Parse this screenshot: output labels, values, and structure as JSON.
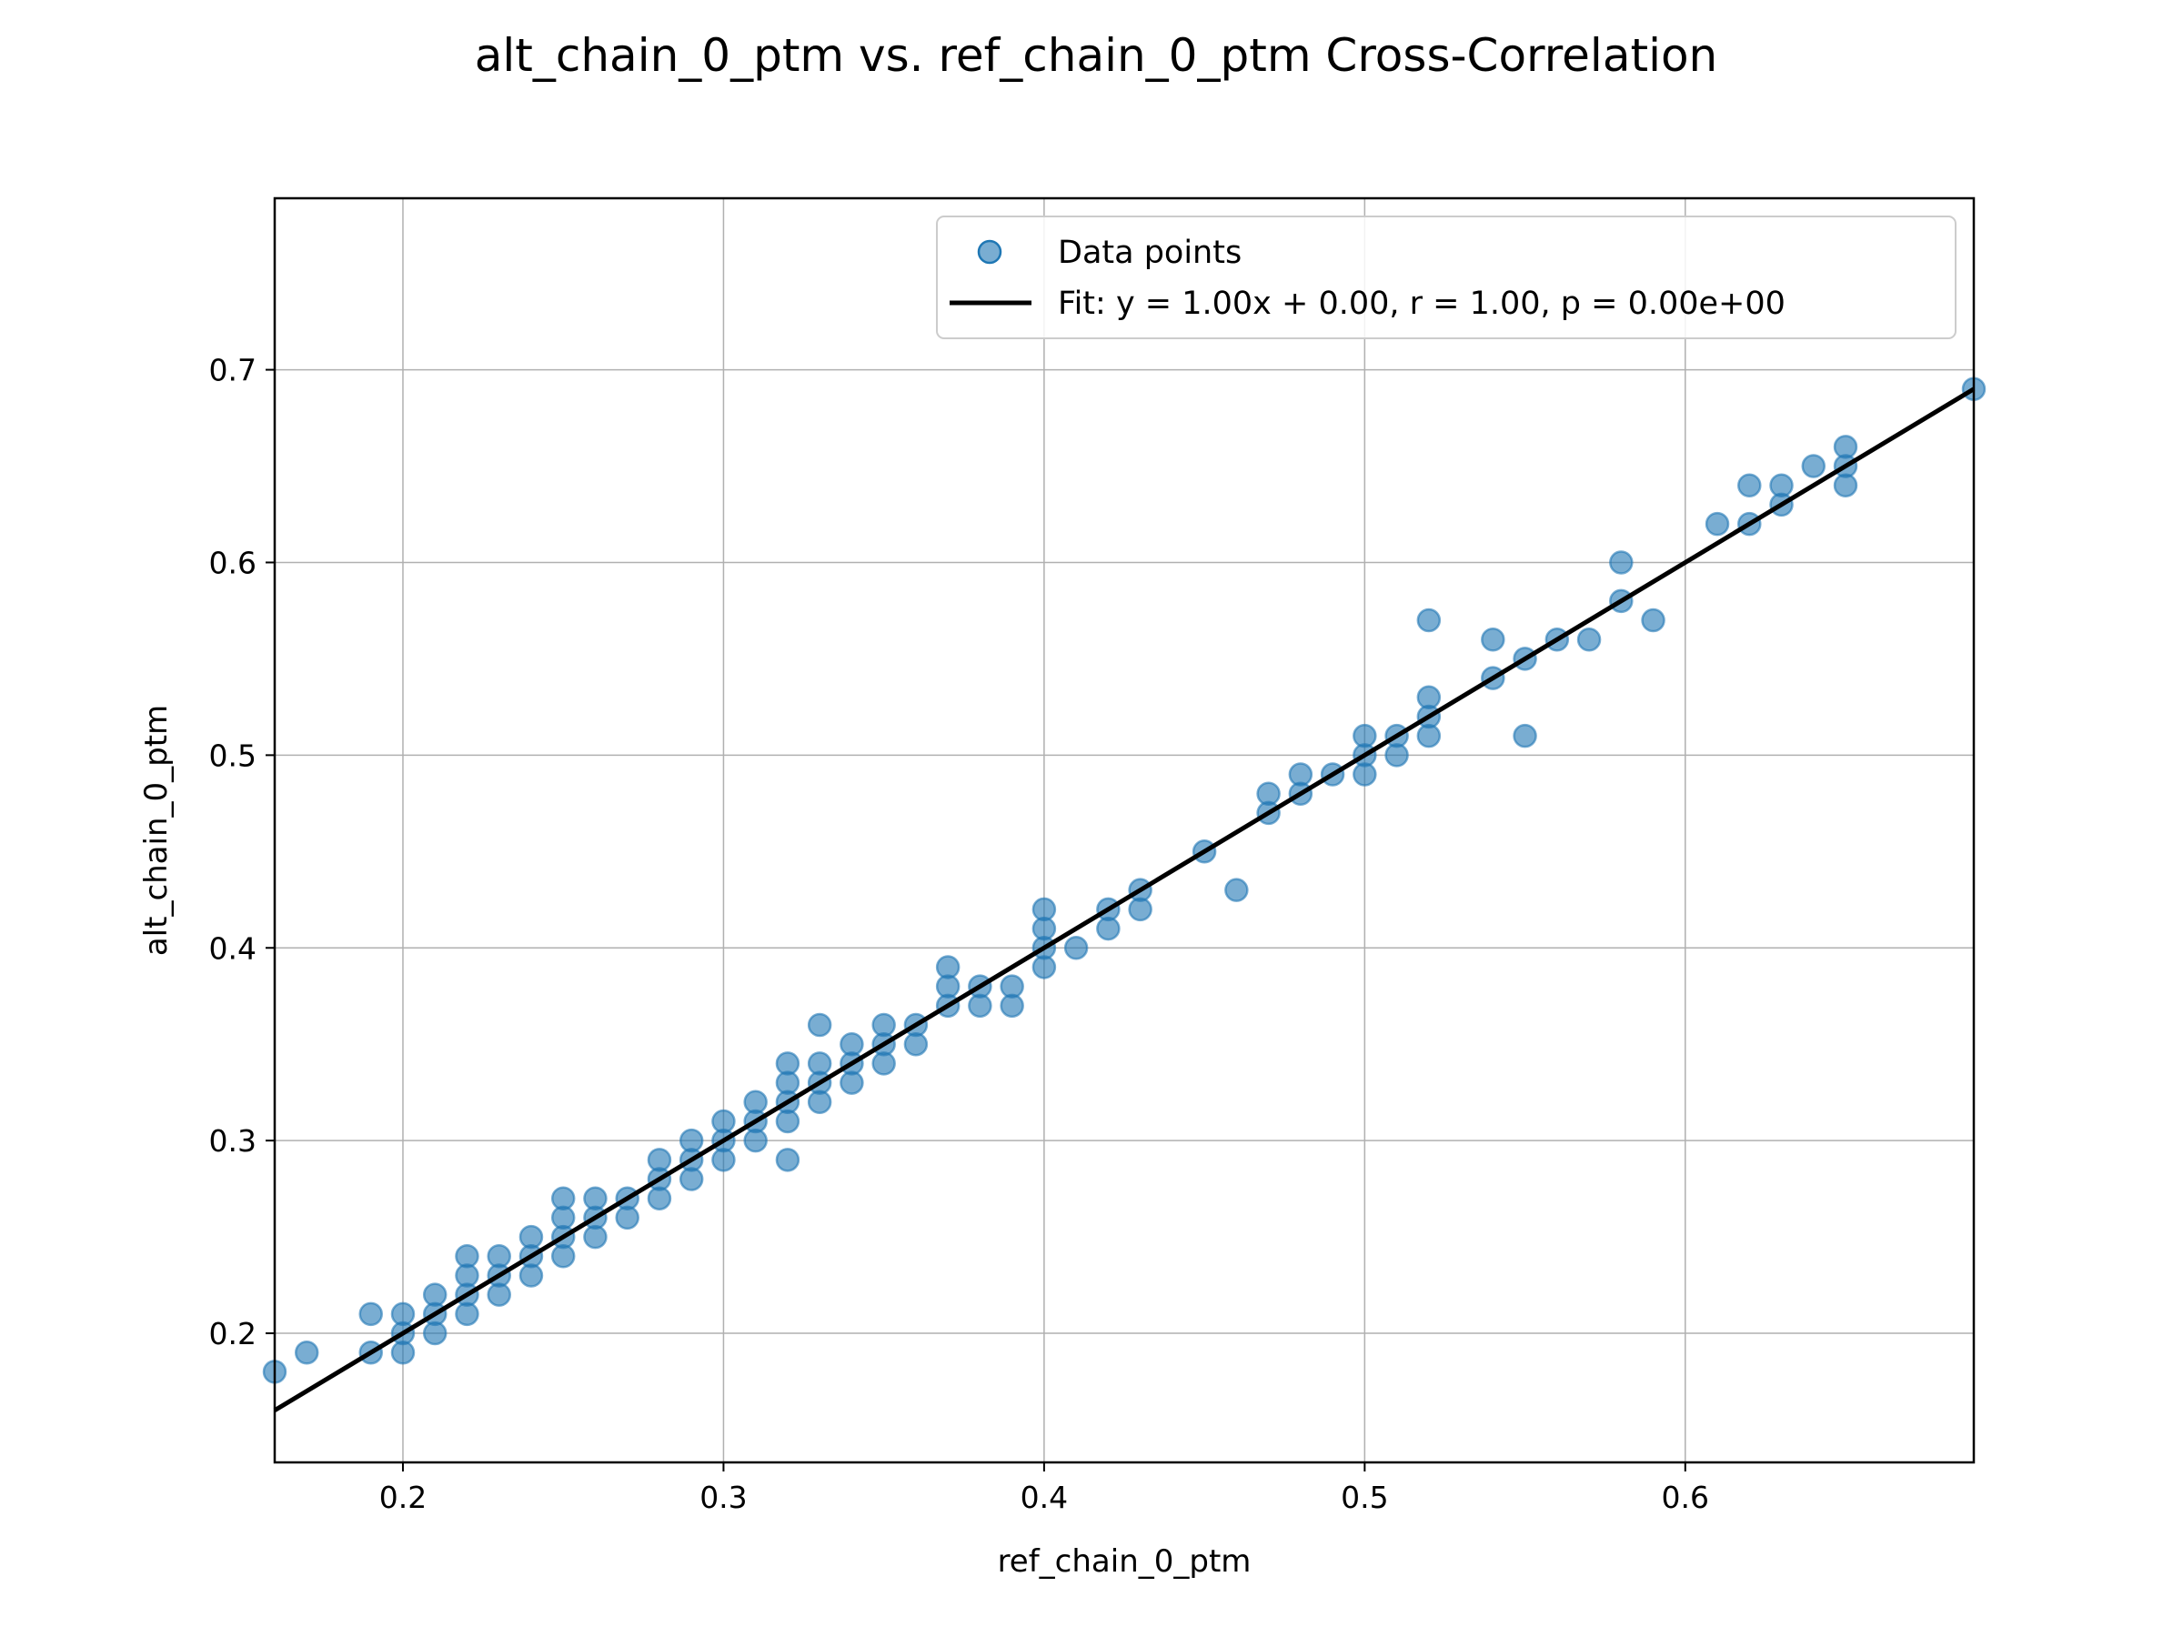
{
  "chart_data": {
    "type": "scatter",
    "title": "alt_chain_0_ptm vs. ref_chain_0_ptm Cross-Correlation",
    "xlabel": "ref_chain_0_ptm",
    "ylabel": "alt_chain_0_ptm",
    "xlim": [
      0.16,
      0.69
    ],
    "ylim": [
      0.133,
      0.789
    ],
    "xticks": [
      0.2,
      0.3,
      0.4,
      0.5,
      0.6
    ],
    "xtick_labels": [
      "0.2",
      "0.3",
      "0.4",
      "0.5",
      "0.6"
    ],
    "yticks": [
      0.2,
      0.3,
      0.4,
      0.5,
      0.6,
      0.7
    ],
    "ytick_labels": [
      "0.2",
      "0.3",
      "0.4",
      "0.5",
      "0.6",
      "0.7"
    ],
    "grid": true,
    "legend_position": "top-right",
    "series": [
      {
        "name": "Data points",
        "kind": "scatter",
        "color": "#1f77b4",
        "points": [
          [
            0.16,
            0.18
          ],
          [
            0.17,
            0.19
          ],
          [
            0.19,
            0.19
          ],
          [
            0.19,
            0.21
          ],
          [
            0.2,
            0.19
          ],
          [
            0.2,
            0.2
          ],
          [
            0.2,
            0.21
          ],
          [
            0.21,
            0.2
          ],
          [
            0.21,
            0.21
          ],
          [
            0.21,
            0.22
          ],
          [
            0.22,
            0.21
          ],
          [
            0.22,
            0.22
          ],
          [
            0.22,
            0.23
          ],
          [
            0.22,
            0.24
          ],
          [
            0.23,
            0.22
          ],
          [
            0.23,
            0.23
          ],
          [
            0.23,
            0.24
          ],
          [
            0.24,
            0.23
          ],
          [
            0.24,
            0.24
          ],
          [
            0.24,
            0.25
          ],
          [
            0.25,
            0.24
          ],
          [
            0.25,
            0.25
          ],
          [
            0.25,
            0.26
          ],
          [
            0.25,
            0.27
          ],
          [
            0.26,
            0.25
          ],
          [
            0.26,
            0.26
          ],
          [
            0.26,
            0.27
          ],
          [
            0.27,
            0.26
          ],
          [
            0.27,
            0.27
          ],
          [
            0.28,
            0.27
          ],
          [
            0.28,
            0.28
          ],
          [
            0.28,
            0.29
          ],
          [
            0.29,
            0.28
          ],
          [
            0.29,
            0.29
          ],
          [
            0.29,
            0.3
          ],
          [
            0.3,
            0.29
          ],
          [
            0.3,
            0.3
          ],
          [
            0.3,
            0.31
          ],
          [
            0.31,
            0.3
          ],
          [
            0.31,
            0.31
          ],
          [
            0.31,
            0.32
          ],
          [
            0.32,
            0.29
          ],
          [
            0.32,
            0.31
          ],
          [
            0.32,
            0.32
          ],
          [
            0.32,
            0.33
          ],
          [
            0.32,
            0.34
          ],
          [
            0.33,
            0.32
          ],
          [
            0.33,
            0.33
          ],
          [
            0.33,
            0.34
          ],
          [
            0.33,
            0.36
          ],
          [
            0.34,
            0.33
          ],
          [
            0.34,
            0.34
          ],
          [
            0.34,
            0.35
          ],
          [
            0.35,
            0.34
          ],
          [
            0.35,
            0.35
          ],
          [
            0.35,
            0.36
          ],
          [
            0.36,
            0.35
          ],
          [
            0.36,
            0.36
          ],
          [
            0.37,
            0.37
          ],
          [
            0.37,
            0.38
          ],
          [
            0.37,
            0.39
          ],
          [
            0.38,
            0.37
          ],
          [
            0.38,
            0.38
          ],
          [
            0.39,
            0.37
          ],
          [
            0.39,
            0.38
          ],
          [
            0.4,
            0.39
          ],
          [
            0.4,
            0.4
          ],
          [
            0.4,
            0.41
          ],
          [
            0.4,
            0.42
          ],
          [
            0.41,
            0.4
          ],
          [
            0.42,
            0.41
          ],
          [
            0.42,
            0.42
          ],
          [
            0.43,
            0.42
          ],
          [
            0.43,
            0.43
          ],
          [
            0.45,
            0.45
          ],
          [
            0.46,
            0.43
          ],
          [
            0.47,
            0.47
          ],
          [
            0.47,
            0.48
          ],
          [
            0.48,
            0.48
          ],
          [
            0.48,
            0.49
          ],
          [
            0.49,
            0.49
          ],
          [
            0.5,
            0.49
          ],
          [
            0.5,
            0.5
          ],
          [
            0.5,
            0.51
          ],
          [
            0.51,
            0.5
          ],
          [
            0.51,
            0.51
          ],
          [
            0.52,
            0.51
          ],
          [
            0.52,
            0.52
          ],
          [
            0.52,
            0.53
          ],
          [
            0.52,
            0.57
          ],
          [
            0.54,
            0.54
          ],
          [
            0.54,
            0.56
          ],
          [
            0.55,
            0.51
          ],
          [
            0.55,
            0.55
          ],
          [
            0.56,
            0.56
          ],
          [
            0.57,
            0.56
          ],
          [
            0.58,
            0.58
          ],
          [
            0.58,
            0.6
          ],
          [
            0.59,
            0.57
          ],
          [
            0.61,
            0.62
          ],
          [
            0.62,
            0.62
          ],
          [
            0.62,
            0.64
          ],
          [
            0.63,
            0.63
          ],
          [
            0.63,
            0.64
          ],
          [
            0.64,
            0.65
          ],
          [
            0.65,
            0.64
          ],
          [
            0.65,
            0.65
          ],
          [
            0.65,
            0.66
          ],
          [
            0.69,
            0.69
          ]
        ]
      },
      {
        "name": "Fit: y = 1.00x + 0.00,  r = 1.00, p = 0.00e+00",
        "kind": "line",
        "color": "#000000",
        "slope": 1.0,
        "intercept": 0.0
      }
    ]
  }
}
